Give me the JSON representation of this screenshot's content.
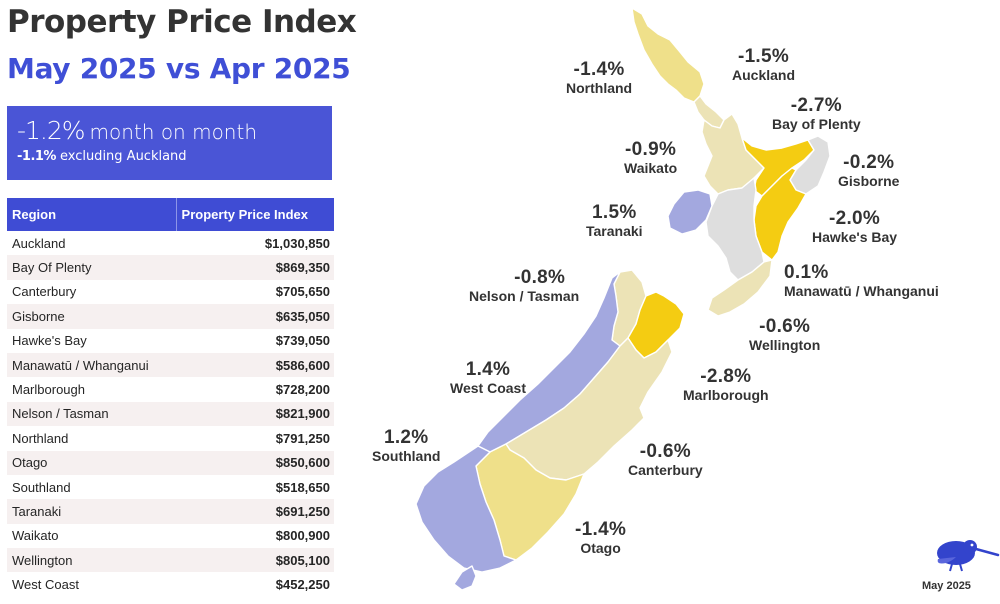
{
  "header": {
    "title": "Property Price Index",
    "subtitle": "May 2025 vs Apr 2025"
  },
  "kpi": {
    "change": "-1.2%",
    "change_label": "month on month",
    "excl_value": "-1.1%",
    "excl_label": "excluding Auckland"
  },
  "table": {
    "headers": [
      "Region",
      "Property Price Index"
    ],
    "rows": [
      {
        "region": "Auckland",
        "value": "$1,030,850"
      },
      {
        "region": "Bay Of Plenty",
        "value": "$869,350"
      },
      {
        "region": "Canterbury",
        "value": "$705,650"
      },
      {
        "region": "Gisborne",
        "value": "$635,050"
      },
      {
        "region": "Hawke's Bay",
        "value": "$739,050"
      },
      {
        "region": "Manawatū / Whanganui",
        "value": "$586,600"
      },
      {
        "region": "Marlborough",
        "value": "$728,200"
      },
      {
        "region": "Nelson / Tasman",
        "value": "$821,900"
      },
      {
        "region": "Northland",
        "value": "$791,250"
      },
      {
        "region": "Otago",
        "value": "$850,600"
      },
      {
        "region": "Southland",
        "value": "$518,650"
      },
      {
        "region": "Taranaki",
        "value": "$691,250"
      },
      {
        "region": "Waikato",
        "value": "$800,900"
      },
      {
        "region": "Wellington",
        "value": "$805,100"
      },
      {
        "region": "West Coast",
        "value": "$452,250"
      }
    ]
  },
  "map": {
    "colors": {
      "strong_decline": "#f4cc12",
      "decline": "#efe08a",
      "mild_decline": "#ece3b6",
      "neutral": "#dedede",
      "increase": "#a3a8df",
      "outline": "#ffffff"
    },
    "labels": {
      "northland": {
        "pct": "-1.4%",
        "name": "Northland"
      },
      "auckland": {
        "pct": "-1.5%",
        "name": "Auckland"
      },
      "bay_of_plenty": {
        "pct": "-2.7%",
        "name": "Bay of Plenty"
      },
      "waikato": {
        "pct": "-0.9%",
        "name": "Waikato"
      },
      "gisborne": {
        "pct": "-0.2%",
        "name": "Gisborne"
      },
      "taranaki": {
        "pct": "1.5%",
        "name": "Taranaki"
      },
      "hawkes_bay": {
        "pct": "-2.0%",
        "name": "Hawke's Bay"
      },
      "manawatu": {
        "pct": "0.1%",
        "name": "Manawatū / Whanganui"
      },
      "nelson": {
        "pct": "-0.8%",
        "name": "Nelson / Tasman"
      },
      "wellington": {
        "pct": "-0.6%",
        "name": "Wellington"
      },
      "west_coast": {
        "pct": "1.4%",
        "name": "West Coast"
      },
      "marlborough": {
        "pct": "-2.8%",
        "name": "Marlborough"
      },
      "southland": {
        "pct": "1.2%",
        "name": "Southland"
      },
      "canterbury": {
        "pct": "-0.6%",
        "name": "Canterbury"
      },
      "otago": {
        "pct": "-1.4%",
        "name": "Otago"
      }
    }
  },
  "footer": {
    "date": "May 2025",
    "logo": "kiwi-icon"
  }
}
